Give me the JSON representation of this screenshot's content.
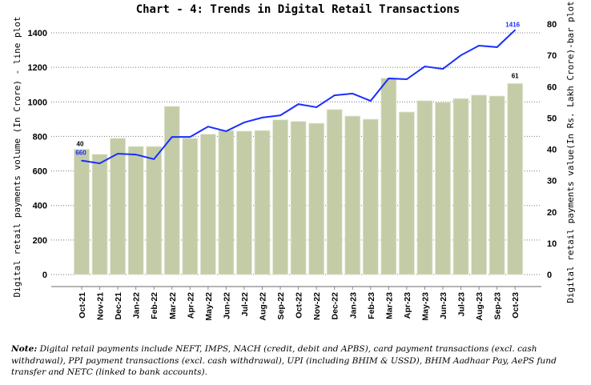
{
  "chart_data": {
    "type": "bar+line",
    "title": "Chart - 4: Trends in Digital Retail Transactions",
    "categories": [
      "Oct-21",
      "Nov-21",
      "Dec-21",
      "Jan-22",
      "Feb-22",
      "Mar-22",
      "Apr-22",
      "May-22",
      "Jun-22",
      "Jul-22",
      "Aug-22",
      "Sep-22",
      "Oct-22",
      "Nov-22",
      "Dec-22",
      "Jan-23",
      "Feb-23",
      "Mar-23",
      "Apr-23",
      "May-23",
      "Jun-23",
      "Jul-23",
      "Aug-23",
      "Sep-23",
      "Oct-23"
    ],
    "left_axis": {
      "label": "Digital retail payments volume (In Crore) - line plot",
      "ylim": [
        0,
        1400
      ],
      "ticks": [
        "0",
        "200",
        "400",
        "600",
        "800",
        "1000",
        "1200",
        "1400"
      ]
    },
    "right_axis": {
      "label": "Digital retail payments value(In Rs. Lakh Crore)-bar plot",
      "ylim": [
        0,
        80
      ],
      "ticks": [
        "0",
        "10",
        "20",
        "30",
        "40",
        "50",
        "60",
        "70",
        "80"
      ]
    },
    "grid": "horizontal dotted",
    "series": [
      {
        "type": "bar",
        "axis": "right",
        "color": "#c3cca6",
        "values": [
          40,
          38.4,
          43.5,
          40.9,
          40.9,
          53.7,
          43.5,
          44.8,
          46,
          45.8,
          46,
          49.4,
          48.9,
          48.3,
          52.7,
          50.6,
          49.6,
          62.7,
          51.9,
          55.5,
          55,
          56.2,
          57.3,
          57,
          61
        ],
        "data_labels": {
          "first": "40",
          "last": "61"
        }
      },
      {
        "type": "line",
        "axis": "left",
        "color": "#1a2fff",
        "values": [
          660,
          644,
          700,
          695,
          668,
          797,
          797,
          857,
          830,
          881,
          909,
          922,
          987,
          969,
          1038,
          1048,
          1006,
          1136,
          1131,
          1205,
          1191,
          1270,
          1326,
          1317,
          1416
        ],
        "data_labels": {
          "first": "660",
          "last": "1416"
        }
      }
    ]
  },
  "note": {
    "label": "Note:",
    "text": "Digital retail payments include NEFT, IMPS, NACH (credit, debit and APBS), card payment transactions (excl. cash withdrawal), PPI payment transactions (excl. cash withdrawal), UPI (including BHIM & USSD), BHIM Aadhaar Pay, AePS fund transfer and NETC (linked to bank accounts)."
  }
}
